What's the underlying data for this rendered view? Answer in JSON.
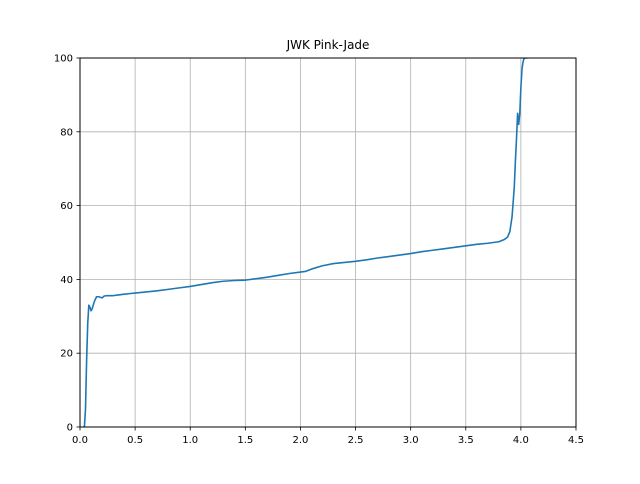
{
  "chart_data": {
    "type": "line",
    "title": "JWK Pink-Jade",
    "xlabel": "",
    "ylabel": "",
    "xlim": [
      0,
      4.5
    ],
    "ylim": [
      0,
      100
    ],
    "xticks": [
      0.0,
      0.5,
      1.0,
      1.5,
      2.0,
      2.5,
      3.0,
      3.5,
      4.0,
      4.5
    ],
    "xtick_labels": [
      "0.0",
      "0.5",
      "1.0",
      "1.5",
      "2.0",
      "2.5",
      "3.0",
      "3.5",
      "4.0",
      "4.5"
    ],
    "yticks": [
      0,
      20,
      40,
      60,
      80,
      100
    ],
    "ytick_labels": [
      "0",
      "20",
      "40",
      "60",
      "80",
      "100"
    ],
    "grid": true,
    "series": [
      {
        "color": "#1f77b4",
        "x": [
          0.03,
          0.04,
          0.05,
          0.06,
          0.07,
          0.08,
          0.09,
          0.1,
          0.11,
          0.12,
          0.13,
          0.15,
          0.17,
          0.2,
          0.22,
          0.25,
          0.3,
          0.35,
          0.4,
          0.5,
          0.6,
          0.7,
          0.8,
          0.9,
          1.0,
          1.1,
          1.2,
          1.3,
          1.4,
          1.5,
          1.6,
          1.7,
          1.8,
          1.9,
          2.0,
          2.05,
          2.1,
          2.2,
          2.3,
          2.4,
          2.5,
          2.6,
          2.7,
          2.8,
          2.9,
          3.0,
          3.1,
          3.2,
          3.3,
          3.4,
          3.5,
          3.6,
          3.7,
          3.8,
          3.85,
          3.88,
          3.9,
          3.92,
          3.94,
          3.95,
          3.96,
          3.97,
          3.98,
          3.99,
          4.0,
          4.01,
          4.02,
          4.03,
          4.04,
          4.05,
          4.06
        ],
        "y": [
          0,
          0,
          5,
          18,
          28,
          33,
          32.5,
          31.5,
          32,
          33,
          34,
          35.3,
          35.3,
          35.0,
          35.5,
          35.6,
          35.6,
          35.8,
          36.0,
          36.3,
          36.6,
          36.9,
          37.3,
          37.7,
          38.1,
          38.6,
          39.1,
          39.5,
          39.7,
          39.8,
          40.2,
          40.6,
          41.1,
          41.6,
          42.0,
          42.2,
          42.8,
          43.7,
          44.3,
          44.6,
          44.9,
          45.3,
          45.8,
          46.2,
          46.6,
          47.0,
          47.5,
          47.9,
          48.3,
          48.7,
          49.1,
          49.5,
          49.8,
          50.2,
          50.8,
          51.5,
          53,
          57,
          65,
          72,
          78,
          85,
          82,
          85,
          92,
          97,
          99,
          100,
          100,
          100,
          100
        ]
      }
    ]
  }
}
